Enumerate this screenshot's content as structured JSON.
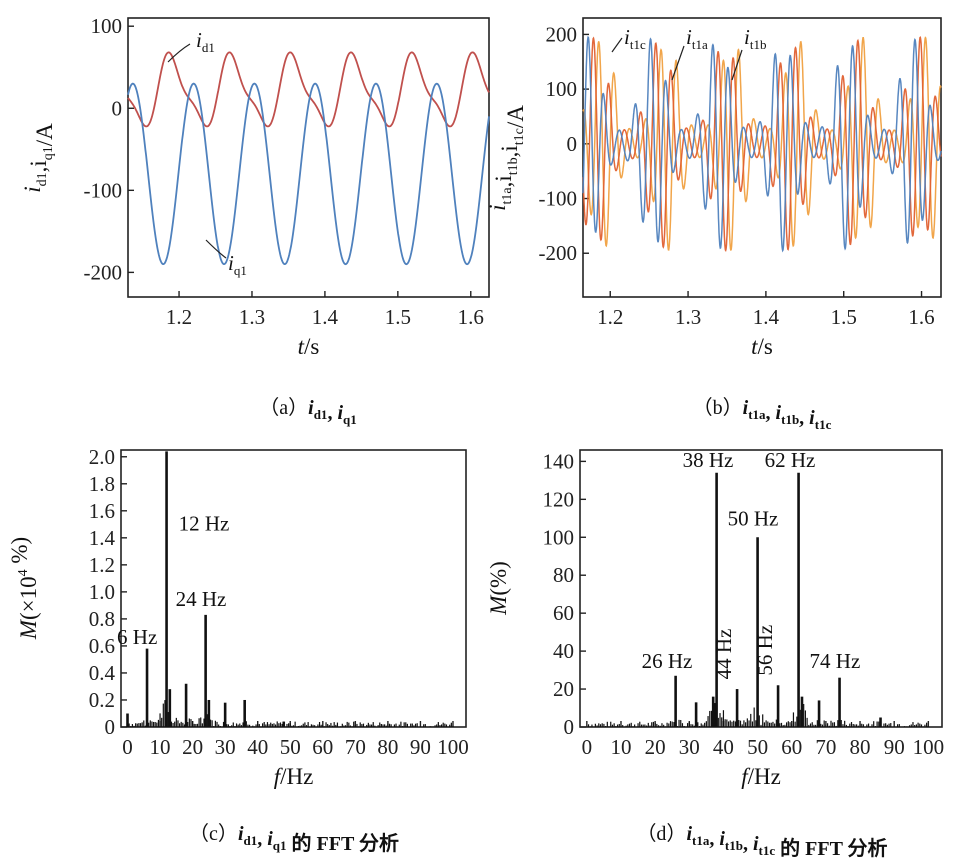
{
  "chart_data": [
    {
      "id": "a",
      "type": "line",
      "caption": {
        "prefix": "（a）",
        "parts": [
          {
            "base": "i",
            "sub": "d1"
          },
          {
            "text": ", "
          },
          {
            "base": "i",
            "sub": "q1"
          }
        ]
      },
      "xlabel": {
        "base": "t",
        "unit": "/s"
      },
      "ylabel": {
        "text": "i_d1,i_q1/A"
      },
      "xlim": [
        1.13,
        1.625
      ],
      "ylim": [
        -230,
        110
      ],
      "xticks": [
        1.2,
        1.3,
        1.4,
        1.5,
        1.6
      ],
      "xtick_labels": [
        "1.2",
        "1.3",
        "1.4",
        "1.5",
        "1.6"
      ],
      "yticks": [
        100,
        0,
        -100,
        -200
      ],
      "ytick_labels": [
        "100",
        "0",
        "-100",
        "-200"
      ],
      "series": [
        {
          "name": "i_d1",
          "base": "i",
          "sub": "d1",
          "color": "#c0504d",
          "model": {
            "mean": 20,
            "amp": 40,
            "freq": 12,
            "phase_t": 1.19,
            "h2": 12
          }
        },
        {
          "name": "i_q1",
          "base": "i",
          "sub": "q1",
          "color": "#4f81bd",
          "model": {
            "mean": -80,
            "amp": 110,
            "freq": 12,
            "phase_t": 1.22,
            "h2": 0
          }
        }
      ]
    },
    {
      "id": "b",
      "type": "line",
      "caption": {
        "prefix": "（b）",
        "parts": [
          {
            "base": "i",
            "sub": "t1a"
          },
          {
            "text": ", "
          },
          {
            "base": "i",
            "sub": "t1b"
          },
          {
            "text": ", "
          },
          {
            "base": "i",
            "sub": "t1c"
          }
        ]
      },
      "xlabel": {
        "base": "t",
        "unit": "/s"
      },
      "ylabel": {
        "text": "i_t1a,i_t1b,i_t1c/A"
      },
      "xlim": [
        1.165,
        1.625
      ],
      "ylim": [
        -280,
        230
      ],
      "xticks": [
        1.2,
        1.3,
        1.4,
        1.5,
        1.6
      ],
      "xtick_labels": [
        "1.2",
        "1.3",
        "1.4",
        "1.5",
        "1.6"
      ],
      "yticks": [
        200,
        100,
        0,
        -100,
        -200
      ],
      "ytick_labels": [
        "200",
        "100",
        "0",
        "-100",
        "-200"
      ],
      "series": [
        {
          "name": "i_t1a",
          "base": "i",
          "sub": "t1a",
          "color": "#f0a040",
          "model": {
            "carrier": 50,
            "env": 12,
            "phase": 0
          }
        },
        {
          "name": "i_t1b",
          "base": "i",
          "sub": "t1b",
          "color": "#e06030",
          "model": {
            "carrier": 50,
            "env": 12,
            "phase": 2.094
          }
        },
        {
          "name": "i_t1c",
          "base": "i",
          "sub": "t1c",
          "color": "#4f81bd",
          "model": {
            "carrier": 50,
            "env": 12,
            "phase": 4.189
          }
        }
      ]
    },
    {
      "id": "c",
      "type": "bar",
      "caption": {
        "prefix": "（c）",
        "parts": [
          {
            "base": "i",
            "sub": "d1"
          },
          {
            "text": ", "
          },
          {
            "base": "i",
            "sub": "q1"
          },
          {
            "text": " 的 FFT 分析"
          }
        ]
      },
      "xlabel": {
        "base": "f",
        "unit": "/Hz"
      },
      "ylabel": {
        "text": "M(×10^4 %)"
      },
      "xlim": [
        -2,
        104
      ],
      "ylim": [
        0,
        2.05
      ],
      "xticks": [
        0,
        10,
        20,
        30,
        40,
        50,
        60,
        70,
        80,
        90,
        100
      ],
      "xtick_labels": [
        "0",
        "10",
        "20",
        "30",
        "40",
        "50",
        "60",
        "70",
        "80",
        "90",
        "100"
      ],
      "yticks": [
        0,
        0.2,
        0.4,
        0.6,
        0.8,
        1.0,
        1.2,
        1.4,
        1.6,
        1.8,
        2.0
      ],
      "ytick_labels": [
        "0",
        "0.2",
        "0.4",
        "0.6",
        "0.8",
        "1.0",
        "1.2",
        "1.4",
        "1.6",
        "1.8",
        "2.0"
      ],
      "peaks": [
        {
          "f": 0,
          "v": 0.1
        },
        {
          "f": 6,
          "v": 0.58
        },
        {
          "f": 12,
          "v": 2.04
        },
        {
          "f": 13,
          "v": 0.28
        },
        {
          "f": 18,
          "v": 0.32
        },
        {
          "f": 24,
          "v": 0.83
        },
        {
          "f": 25,
          "v": 0.2
        },
        {
          "f": 30,
          "v": 0.18
        },
        {
          "f": 36,
          "v": 0.2
        },
        {
          "f": 48,
          "v": 0.04
        }
      ],
      "annotations": [
        {
          "text": "6 Hz",
          "f": 6,
          "v": 0.6
        },
        {
          "text": "12 Hz",
          "f": 12,
          "v": 1.5
        },
        {
          "text": "24 Hz",
          "f": 24,
          "v": 0.85
        }
      ]
    },
    {
      "id": "d",
      "type": "bar",
      "caption": {
        "prefix": "（d）",
        "parts": [
          {
            "base": "i",
            "sub": "t1a"
          },
          {
            "text": ", "
          },
          {
            "base": "i",
            "sub": "t1b"
          },
          {
            "text": ", "
          },
          {
            "base": "i",
            "sub": "t1c"
          },
          {
            "text": " 的 FFT 分析"
          }
        ]
      },
      "xlabel": {
        "base": "f",
        "unit": "/Hz"
      },
      "ylabel": {
        "text": "M(%)"
      },
      "xlim": [
        -2,
        104
      ],
      "ylim": [
        0,
        146
      ],
      "xticks": [
        0,
        10,
        20,
        30,
        40,
        50,
        60,
        70,
        80,
        90,
        100
      ],
      "xtick_labels": [
        "0",
        "10",
        "20",
        "30",
        "40",
        "50",
        "60",
        "70",
        "80",
        "90",
        "100"
      ],
      "yticks": [
        0,
        20,
        40,
        60,
        80,
        100,
        120,
        140
      ],
      "ytick_labels": [
        "0",
        "20",
        "40",
        "60",
        "80",
        "100",
        "120",
        "140"
      ],
      "peaks": [
        {
          "f": 26,
          "v": 27
        },
        {
          "f": 32,
          "v": 13
        },
        {
          "f": 37,
          "v": 16
        },
        {
          "f": 38,
          "v": 134
        },
        {
          "f": 44,
          "v": 20
        },
        {
          "f": 50,
          "v": 100
        },
        {
          "f": 56,
          "v": 22
        },
        {
          "f": 62,
          "v": 134
        },
        {
          "f": 63,
          "v": 16
        },
        {
          "f": 68,
          "v": 14
        },
        {
          "f": 74,
          "v": 26
        },
        {
          "f": 86,
          "v": 5
        }
      ],
      "annotations": [
        {
          "text": "26 Hz",
          "f": 26,
          "v": 29,
          "rot": false
        },
        {
          "text": "38 Hz",
          "f": 38,
          "v": 136,
          "rot": false
        },
        {
          "text": "62 Hz",
          "f": 62,
          "v": 136,
          "rot": false
        },
        {
          "text": "50 Hz",
          "f": 50,
          "v": 103,
          "rot": false
        },
        {
          "text": "44 Hz",
          "f": 44,
          "v": 23,
          "rot": true
        },
        {
          "text": "56 Hz",
          "f": 56,
          "v": 25,
          "rot": true
        },
        {
          "text": "74 Hz",
          "f": 74,
          "v": 28,
          "rot": false
        }
      ]
    }
  ]
}
